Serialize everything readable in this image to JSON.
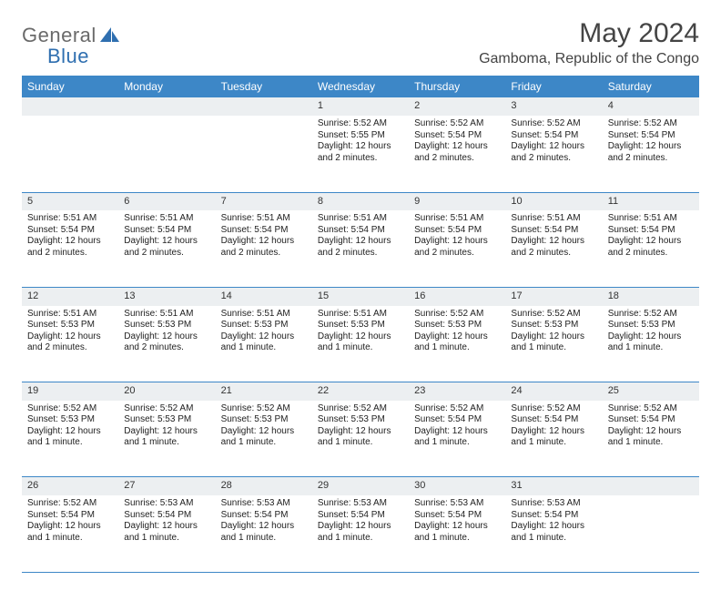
{
  "brand": {
    "general": "General",
    "blue": "Blue"
  },
  "title": "May 2024",
  "location": "Gamboma, Republic of the Congo",
  "colors": {
    "header_bg": "#3d87c7",
    "header_text": "#ffffff",
    "daynum_bg": "#eceff1",
    "border": "#3d87c7",
    "logo_gray": "#6a6a6a",
    "logo_blue": "#2f6fb0"
  },
  "weekdays": [
    "Sunday",
    "Monday",
    "Tuesday",
    "Wednesday",
    "Thursday",
    "Friday",
    "Saturday"
  ],
  "weeks": [
    [
      null,
      null,
      null,
      {
        "n": "1",
        "sr": "Sunrise: 5:52 AM",
        "ss": "Sunset: 5:55 PM",
        "dl": "Daylight: 12 hours and 2 minutes."
      },
      {
        "n": "2",
        "sr": "Sunrise: 5:52 AM",
        "ss": "Sunset: 5:54 PM",
        "dl": "Daylight: 12 hours and 2 minutes."
      },
      {
        "n": "3",
        "sr": "Sunrise: 5:52 AM",
        "ss": "Sunset: 5:54 PM",
        "dl": "Daylight: 12 hours and 2 minutes."
      },
      {
        "n": "4",
        "sr": "Sunrise: 5:52 AM",
        "ss": "Sunset: 5:54 PM",
        "dl": "Daylight: 12 hours and 2 minutes."
      }
    ],
    [
      {
        "n": "5",
        "sr": "Sunrise: 5:51 AM",
        "ss": "Sunset: 5:54 PM",
        "dl": "Daylight: 12 hours and 2 minutes."
      },
      {
        "n": "6",
        "sr": "Sunrise: 5:51 AM",
        "ss": "Sunset: 5:54 PM",
        "dl": "Daylight: 12 hours and 2 minutes."
      },
      {
        "n": "7",
        "sr": "Sunrise: 5:51 AM",
        "ss": "Sunset: 5:54 PM",
        "dl": "Daylight: 12 hours and 2 minutes."
      },
      {
        "n": "8",
        "sr": "Sunrise: 5:51 AM",
        "ss": "Sunset: 5:54 PM",
        "dl": "Daylight: 12 hours and 2 minutes."
      },
      {
        "n": "9",
        "sr": "Sunrise: 5:51 AM",
        "ss": "Sunset: 5:54 PM",
        "dl": "Daylight: 12 hours and 2 minutes."
      },
      {
        "n": "10",
        "sr": "Sunrise: 5:51 AM",
        "ss": "Sunset: 5:54 PM",
        "dl": "Daylight: 12 hours and 2 minutes."
      },
      {
        "n": "11",
        "sr": "Sunrise: 5:51 AM",
        "ss": "Sunset: 5:54 PM",
        "dl": "Daylight: 12 hours and 2 minutes."
      }
    ],
    [
      {
        "n": "12",
        "sr": "Sunrise: 5:51 AM",
        "ss": "Sunset: 5:53 PM",
        "dl": "Daylight: 12 hours and 2 minutes."
      },
      {
        "n": "13",
        "sr": "Sunrise: 5:51 AM",
        "ss": "Sunset: 5:53 PM",
        "dl": "Daylight: 12 hours and 2 minutes."
      },
      {
        "n": "14",
        "sr": "Sunrise: 5:51 AM",
        "ss": "Sunset: 5:53 PM",
        "dl": "Daylight: 12 hours and 1 minute."
      },
      {
        "n": "15",
        "sr": "Sunrise: 5:51 AM",
        "ss": "Sunset: 5:53 PM",
        "dl": "Daylight: 12 hours and 1 minute."
      },
      {
        "n": "16",
        "sr": "Sunrise: 5:52 AM",
        "ss": "Sunset: 5:53 PM",
        "dl": "Daylight: 12 hours and 1 minute."
      },
      {
        "n": "17",
        "sr": "Sunrise: 5:52 AM",
        "ss": "Sunset: 5:53 PM",
        "dl": "Daylight: 12 hours and 1 minute."
      },
      {
        "n": "18",
        "sr": "Sunrise: 5:52 AM",
        "ss": "Sunset: 5:53 PM",
        "dl": "Daylight: 12 hours and 1 minute."
      }
    ],
    [
      {
        "n": "19",
        "sr": "Sunrise: 5:52 AM",
        "ss": "Sunset: 5:53 PM",
        "dl": "Daylight: 12 hours and 1 minute."
      },
      {
        "n": "20",
        "sr": "Sunrise: 5:52 AM",
        "ss": "Sunset: 5:53 PM",
        "dl": "Daylight: 12 hours and 1 minute."
      },
      {
        "n": "21",
        "sr": "Sunrise: 5:52 AM",
        "ss": "Sunset: 5:53 PM",
        "dl": "Daylight: 12 hours and 1 minute."
      },
      {
        "n": "22",
        "sr": "Sunrise: 5:52 AM",
        "ss": "Sunset: 5:53 PM",
        "dl": "Daylight: 12 hours and 1 minute."
      },
      {
        "n": "23",
        "sr": "Sunrise: 5:52 AM",
        "ss": "Sunset: 5:54 PM",
        "dl": "Daylight: 12 hours and 1 minute."
      },
      {
        "n": "24",
        "sr": "Sunrise: 5:52 AM",
        "ss": "Sunset: 5:54 PM",
        "dl": "Daylight: 12 hours and 1 minute."
      },
      {
        "n": "25",
        "sr": "Sunrise: 5:52 AM",
        "ss": "Sunset: 5:54 PM",
        "dl": "Daylight: 12 hours and 1 minute."
      }
    ],
    [
      {
        "n": "26",
        "sr": "Sunrise: 5:52 AM",
        "ss": "Sunset: 5:54 PM",
        "dl": "Daylight: 12 hours and 1 minute."
      },
      {
        "n": "27",
        "sr": "Sunrise: 5:53 AM",
        "ss": "Sunset: 5:54 PM",
        "dl": "Daylight: 12 hours and 1 minute."
      },
      {
        "n": "28",
        "sr": "Sunrise: 5:53 AM",
        "ss": "Sunset: 5:54 PM",
        "dl": "Daylight: 12 hours and 1 minute."
      },
      {
        "n": "29",
        "sr": "Sunrise: 5:53 AM",
        "ss": "Sunset: 5:54 PM",
        "dl": "Daylight: 12 hours and 1 minute."
      },
      {
        "n": "30",
        "sr": "Sunrise: 5:53 AM",
        "ss": "Sunset: 5:54 PM",
        "dl": "Daylight: 12 hours and 1 minute."
      },
      {
        "n": "31",
        "sr": "Sunrise: 5:53 AM",
        "ss": "Sunset: 5:54 PM",
        "dl": "Daylight: 12 hours and 1 minute."
      },
      null
    ]
  ]
}
